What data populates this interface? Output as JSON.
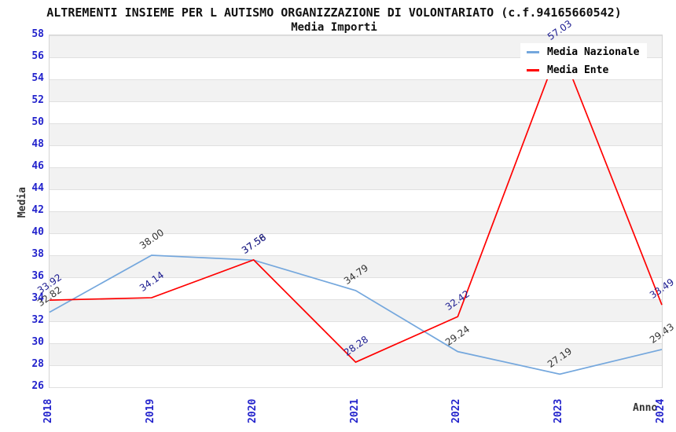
{
  "title": "ALTREMENTI INSIEME PER L AUTISMO ORGANIZZAZIONE DI VOLONTARIATO (c.f.94165660542)",
  "subtitle": "Media Importi",
  "legend": {
    "position": "top-right",
    "items": [
      {
        "label": "Media Nazionale",
        "color": "#74a7dd"
      },
      {
        "label": "Media Ente",
        "color": "#ff0000"
      }
    ]
  },
  "chart_data": {
    "type": "line",
    "categories": [
      "2018",
      "2019",
      "2020",
      "2021",
      "2022",
      "2023",
      "2024"
    ],
    "xlabel": "Anno",
    "ylabel": "Media",
    "ylim": [
      26,
      58
    ],
    "ytick_step": 2,
    "grid": "horizontal gridlines with alternating gray bands",
    "legend_position": "top-right",
    "series": [
      {
        "name": "Media Nazionale",
        "color": "#74a7dd",
        "label_color": "#333333",
        "values": [
          32.82,
          38.0,
          37.56,
          34.79,
          29.24,
          27.19,
          29.43
        ]
      },
      {
        "name": "Media Ente",
        "color": "#ff0000",
        "label_color": "#1a1a8f",
        "values": [
          33.92,
          34.14,
          37.58,
          28.28,
          32.42,
          57.03,
          33.49
        ]
      }
    ]
  },
  "colors": {
    "tick_label": "#2323cc",
    "band": "#f2f2f2",
    "gridline": "#e0e0e0",
    "plot_border": "#d5d5d5",
    "title_text": "#111111",
    "axis_label_text": "#333333",
    "background": "#ffffff"
  }
}
